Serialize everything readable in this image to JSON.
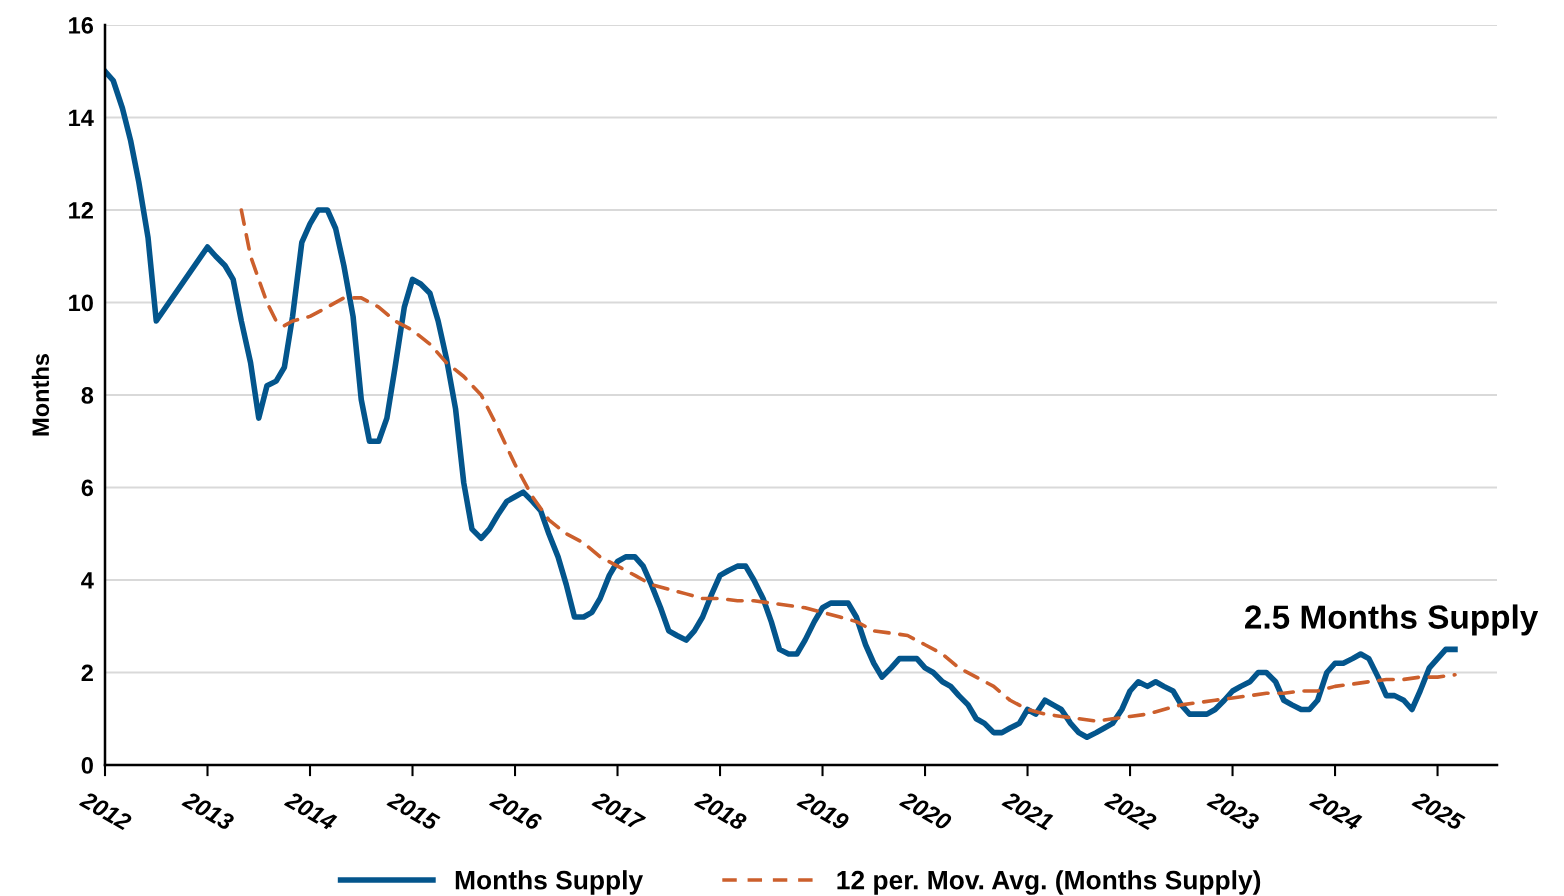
{
  "chart_data": {
    "type": "line",
    "ylabel": "Months",
    "xlim": [
      2012,
      2025.58
    ],
    "xticks": [
      2012,
      2013,
      2014,
      2015,
      2016,
      2017,
      2018,
      2019,
      2020,
      2021,
      2022,
      2023,
      2024,
      2025
    ],
    "ylim": [
      0,
      16
    ],
    "yticks": [
      0,
      2,
      4,
      6,
      8,
      10,
      12,
      14,
      16
    ],
    "grid": "y",
    "legend": "bottom",
    "annotations": [
      {
        "text": "2.5 Months Supply",
        "x": 2025.17,
        "y": 2.5
      }
    ],
    "series": [
      {
        "name": "Months Supply",
        "color": "#03558c",
        "line_style": "solid",
        "x": [
          2012.0,
          2012.08,
          2012.17,
          2012.25,
          2012.33,
          2012.42,
          2012.5,
          2013.0,
          2013.08,
          2013.17,
          2013.25,
          2013.33,
          2013.42,
          2013.5,
          2013.58,
          2013.67,
          2013.75,
          2013.83,
          2013.92,
          2014.0,
          2014.08,
          2014.17,
          2014.25,
          2014.33,
          2014.42,
          2014.5,
          2014.58,
          2014.67,
          2014.75,
          2014.83,
          2014.92,
          2015.0,
          2015.08,
          2015.17,
          2015.25,
          2015.33,
          2015.42,
          2015.5,
          2015.58,
          2015.67,
          2015.75,
          2015.83,
          2015.92,
          2016.0,
          2016.08,
          2016.17,
          2016.25,
          2016.33,
          2016.42,
          2016.5,
          2016.58,
          2016.67,
          2016.75,
          2016.83,
          2016.92,
          2017.0,
          2017.08,
          2017.17,
          2017.25,
          2017.33,
          2017.42,
          2017.5,
          2017.58,
          2017.67,
          2017.75,
          2017.83,
          2017.92,
          2018.0,
          2018.08,
          2018.17,
          2018.25,
          2018.33,
          2018.42,
          2018.5,
          2018.58,
          2018.67,
          2018.75,
          2018.83,
          2018.92,
          2019.0,
          2019.08,
          2019.17,
          2019.25,
          2019.33,
          2019.42,
          2019.5,
          2019.58,
          2019.67,
          2019.75,
          2019.83,
          2019.92,
          2020.0,
          2020.08,
          2020.17,
          2020.25,
          2020.33,
          2020.42,
          2020.5,
          2020.58,
          2020.67,
          2020.75,
          2020.83,
          2020.92,
          2021.0,
          2021.08,
          2021.17,
          2021.25,
          2021.33,
          2021.42,
          2021.5,
          2021.58,
          2021.67,
          2021.75,
          2021.83,
          2021.92,
          2022.0,
          2022.08,
          2022.17,
          2022.25,
          2022.33,
          2022.42,
          2022.5,
          2022.58,
          2022.67,
          2022.75,
          2022.83,
          2022.92,
          2023.0,
          2023.08,
          2023.17,
          2023.25,
          2023.33,
          2023.42,
          2023.5,
          2023.58,
          2023.67,
          2023.75,
          2023.83,
          2023.92,
          2024.0,
          2024.08,
          2024.17,
          2024.25,
          2024.33,
          2024.42,
          2024.5,
          2024.58,
          2024.67,
          2024.75,
          2024.83,
          2024.92,
          2025.0,
          2025.08,
          2025.17
        ],
        "values": [
          15.0,
          14.8,
          14.2,
          13.5,
          12.6,
          11.4,
          9.6,
          11.2,
          11.0,
          10.8,
          10.5,
          9.6,
          8.7,
          7.5,
          8.2,
          8.3,
          8.6,
          9.7,
          11.3,
          11.7,
          12.0,
          12.0,
          11.6,
          10.8,
          9.7,
          7.9,
          7.0,
          7.0,
          7.5,
          8.6,
          9.9,
          10.5,
          10.4,
          10.2,
          9.6,
          8.8,
          7.7,
          6.1,
          5.1,
          4.9,
          5.1,
          5.4,
          5.7,
          5.8,
          5.9,
          5.7,
          5.5,
          5.0,
          4.5,
          3.9,
          3.2,
          3.2,
          3.3,
          3.6,
          4.1,
          4.4,
          4.5,
          4.5,
          4.3,
          3.9,
          3.4,
          2.9,
          2.8,
          2.7,
          2.9,
          3.2,
          3.7,
          4.1,
          4.2,
          4.3,
          4.3,
          4.0,
          3.6,
          3.1,
          2.5,
          2.4,
          2.4,
          2.7,
          3.1,
          3.4,
          3.5,
          3.5,
          3.5,
          3.2,
          2.6,
          2.2,
          1.9,
          2.1,
          2.3,
          2.3,
          2.3,
          2.1,
          2.0,
          1.8,
          1.7,
          1.5,
          1.3,
          1.0,
          0.9,
          0.7,
          0.7,
          0.8,
          0.9,
          1.2,
          1.1,
          1.4,
          1.3,
          1.2,
          0.9,
          0.7,
          0.6,
          0.7,
          0.8,
          0.9,
          1.2,
          1.6,
          1.8,
          1.7,
          1.8,
          1.7,
          1.6,
          1.3,
          1.1,
          1.1,
          1.1,
          1.2,
          1.4,
          1.6,
          1.7,
          1.8,
          2.0,
          2.0,
          1.8,
          1.4,
          1.3,
          1.2,
          1.2,
          1.4,
          2.0,
          2.2,
          2.2,
          2.3,
          2.4,
          2.3,
          1.9,
          1.5,
          1.5,
          1.4,
          1.2,
          1.6,
          2.1,
          2.3,
          2.5,
          2.5
        ]
      },
      {
        "name": "12 per. Mov. Avg. (Months Supply)",
        "color": "#cc5f2c",
        "line_style": "dashed",
        "x": [
          2013.33,
          2013.42,
          2013.5,
          2013.58,
          2013.67,
          2013.75,
          2013.83,
          2014.0,
          2014.17,
          2014.33,
          2014.5,
          2014.67,
          2014.83,
          2015.0,
          2015.17,
          2015.33,
          2015.5,
          2015.67,
          2015.83,
          2016.0,
          2016.17,
          2016.33,
          2016.5,
          2016.67,
          2016.83,
          2017.0,
          2017.17,
          2017.33,
          2017.5,
          2017.67,
          2017.83,
          2018.0,
          2018.17,
          2018.33,
          2018.5,
          2018.67,
          2018.83,
          2019.0,
          2019.17,
          2019.33,
          2019.5,
          2019.67,
          2019.83,
          2020.0,
          2020.17,
          2020.33,
          2020.5,
          2020.67,
          2020.83,
          2021.0,
          2021.17,
          2021.33,
          2021.5,
          2021.67,
          2021.83,
          2022.0,
          2022.17,
          2022.33,
          2022.5,
          2022.67,
          2022.83,
          2023.0,
          2023.17,
          2023.33,
          2023.5,
          2023.67,
          2023.83,
          2024.0,
          2024.17,
          2024.33,
          2024.5,
          2024.67,
          2024.83,
          2025.0,
          2025.17
        ],
        "values": [
          12.0,
          11.0,
          10.5,
          10.0,
          9.6,
          9.5,
          9.6,
          9.7,
          9.9,
          10.1,
          10.1,
          9.9,
          9.6,
          9.4,
          9.1,
          8.7,
          8.4,
          8.0,
          7.3,
          6.5,
          5.8,
          5.3,
          5.0,
          4.8,
          4.5,
          4.3,
          4.1,
          3.9,
          3.8,
          3.7,
          3.6,
          3.6,
          3.55,
          3.55,
          3.5,
          3.45,
          3.4,
          3.3,
          3.2,
          3.1,
          2.9,
          2.85,
          2.8,
          2.6,
          2.4,
          2.1,
          1.9,
          1.7,
          1.4,
          1.2,
          1.1,
          1.05,
          1.0,
          0.95,
          1.0,
          1.05,
          1.1,
          1.2,
          1.3,
          1.35,
          1.4,
          1.45,
          1.5,
          1.55,
          1.55,
          1.6,
          1.6,
          1.7,
          1.75,
          1.8,
          1.85,
          1.85,
          1.9,
          1.9,
          1.95
        ]
      }
    ]
  }
}
